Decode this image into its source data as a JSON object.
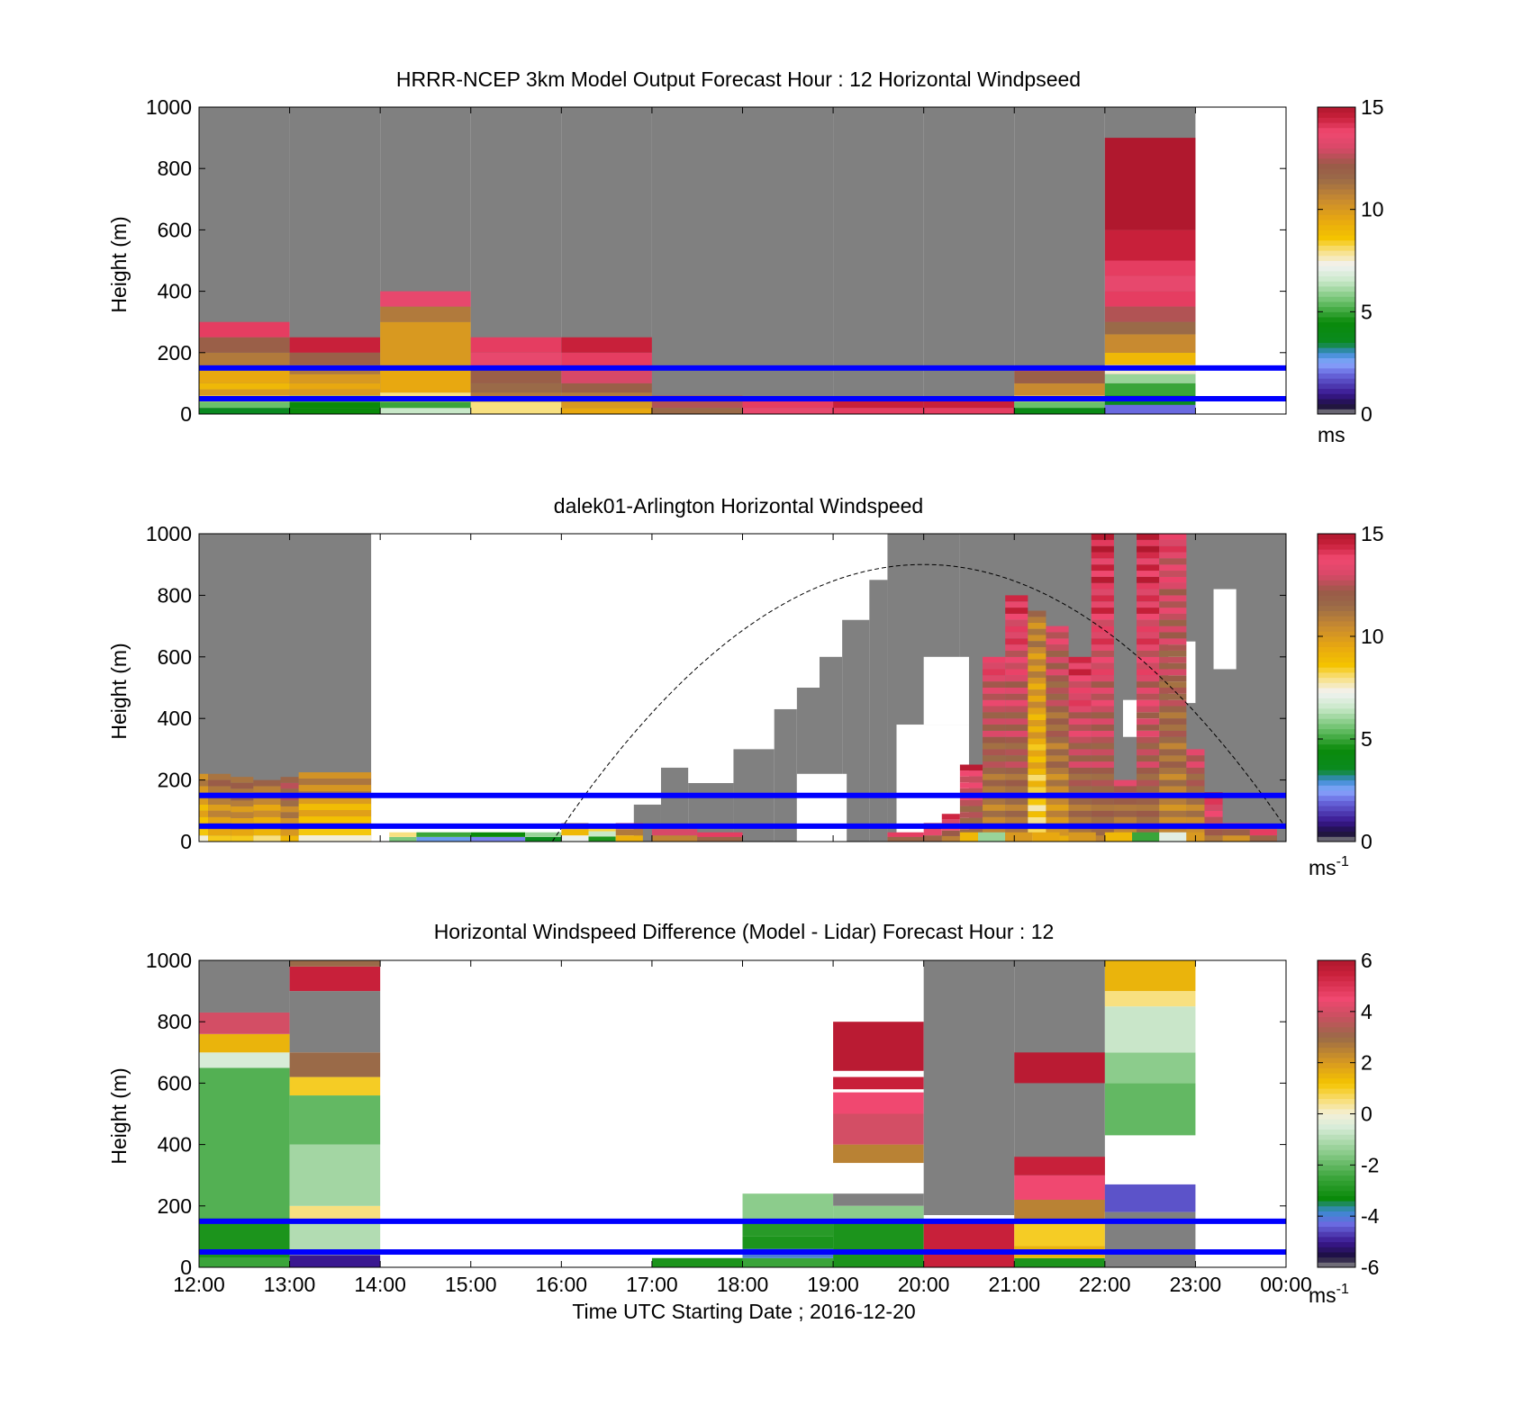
{
  "figure": {
    "xlabel": "Time UTC  Starting Date ; 2016-12-20",
    "x_ticks": [
      "12:00",
      "13:00",
      "14:00",
      "15:00",
      "16:00",
      "17:00",
      "18:00",
      "19:00",
      "20:00",
      "21:00",
      "22:00",
      "23:00",
      "00:00"
    ]
  },
  "chart_data": [
    {
      "type": "heatmap",
      "title": "HRRR-NCEP 3km Model Output   Forecast Hour : 12 Horizontal Windpseed",
      "ylabel": "Height (m)",
      "ylim": [
        0,
        1000
      ],
      "y_ticks": [
        "0",
        "200",
        "400",
        "600",
        "800",
        "1000"
      ],
      "x_range_hours": [
        12,
        24
      ],
      "colorbar": {
        "min": 0,
        "max": 15,
        "ticks": [
          "0",
          "5",
          "10",
          "15"
        ],
        "unit": "ms",
        "unit_sup": ""
      },
      "reference_lines_m": [
        150,
        50
      ],
      "missing_color": "#808080",
      "columns": [
        {
          "t0": 12,
          "t1": 13,
          "top": 1000,
          "bins": [
            [
              0,
              20,
              3.5
            ],
            [
              20,
              40,
              5.5
            ],
            [
              40,
              60,
              8
            ],
            [
              60,
              80,
              10
            ],
            [
              80,
              100,
              9
            ],
            [
              100,
              150,
              9.5
            ],
            [
              150,
              200,
              11
            ],
            [
              200,
              250,
              12
            ],
            [
              250,
              300,
              14
            ]
          ]
        },
        {
          "t0": 13,
          "t1": 14,
          "top": 1000,
          "bins": [
            [
              0,
              20,
              4.5
            ],
            [
              20,
              40,
              4.5
            ],
            [
              40,
              60,
              6
            ],
            [
              60,
              80,
              10
            ],
            [
              80,
              100,
              9.5
            ],
            [
              100,
              130,
              10
            ],
            [
              130,
              160,
              11
            ],
            [
              160,
              200,
              12
            ],
            [
              200,
              250,
              14.5
            ]
          ]
        },
        {
          "t0": 14,
          "t1": 15,
          "top": 1000,
          "bins": [
            [
              0,
              20,
              6.5
            ],
            [
              20,
              40,
              5
            ],
            [
              40,
              70,
              8
            ],
            [
              70,
              150,
              9.5
            ],
            [
              150,
              300,
              10
            ],
            [
              300,
              350,
              11
            ],
            [
              350,
              400,
              13.5
            ]
          ]
        },
        {
          "t0": 15,
          "t1": 16,
          "top": 1000,
          "bins": [
            [
              0,
              40,
              8
            ],
            [
              40,
              70,
              11
            ],
            [
              70,
              100,
              11.5
            ],
            [
              100,
              150,
              12
            ],
            [
              150,
              200,
              13.5
            ],
            [
              200,
              250,
              14
            ]
          ]
        },
        {
          "t0": 16,
          "t1": 17,
          "top": 1000,
          "bins": [
            [
              0,
              20,
              9.5
            ],
            [
              20,
              40,
              10
            ],
            [
              40,
              70,
              11
            ],
            [
              70,
              100,
              12
            ],
            [
              100,
              150,
              13
            ],
            [
              150,
              200,
              14
            ],
            [
              200,
              250,
              14.5
            ]
          ]
        },
        {
          "t0": 17,
          "t1": 18,
          "top": 1000,
          "bins": [
            [
              0,
              20,
              11.5
            ],
            [
              20,
              60,
              12.5
            ]
          ]
        },
        {
          "t0": 18,
          "t1": 19,
          "top": 1000,
          "bins": [
            [
              0,
              20,
              13.5
            ],
            [
              20,
              50,
              14
            ]
          ]
        },
        {
          "t0": 19,
          "t1": 20,
          "top": 1000,
          "bins": [
            [
              0,
              20,
              14
            ],
            [
              20,
              50,
              14.5
            ]
          ]
        },
        {
          "t0": 20,
          "t1": 21,
          "top": 1000,
          "bins": [
            [
              0,
              20,
              14
            ],
            [
              20,
              50,
              14.5
            ]
          ]
        },
        {
          "t0": 21,
          "t1": 22,
          "top": 1000,
          "bins": [
            [
              0,
              20,
              4
            ],
            [
              20,
              40,
              5.5
            ],
            [
              40,
              60,
              8
            ],
            [
              60,
              100,
              10.5
            ],
            [
              100,
              140,
              12
            ],
            [
              140,
              150,
              14
            ]
          ]
        },
        {
          "t0": 22,
          "t1": 23,
          "top": 1000,
          "bins": [
            [
              0,
              30,
              2
            ],
            [
              30,
              60,
              3.5
            ],
            [
              60,
              100,
              5
            ],
            [
              100,
              130,
              6
            ],
            [
              130,
              160,
              7.5
            ],
            [
              160,
              200,
              9
            ],
            [
              200,
              260,
              10.5
            ],
            [
              260,
              300,
              11.5
            ],
            [
              300,
              350,
              12.5
            ],
            [
              350,
              400,
              14
            ],
            [
              400,
              450,
              13.5
            ],
            [
              450,
              500,
              14
            ],
            [
              500,
              600,
              14.5
            ],
            [
              600,
              900,
              15
            ]
          ]
        },
        {
          "t0": 23,
          "t1": 24,
          "top": 0,
          "bins": []
        }
      ]
    },
    {
      "type": "heatmap",
      "title": "dalek01-Arlington  Horizontal Windspeed",
      "ylabel": "Height (m)",
      "ylim": [
        0,
        1000
      ],
      "y_ticks": [
        "0",
        "200",
        "400",
        "600",
        "800",
        "1000"
      ],
      "x_range_hours": [
        12,
        24
      ],
      "colorbar": {
        "min": 0,
        "max": 15,
        "ticks": [
          "0",
          "5",
          "10",
          "15"
        ],
        "unit": "ms",
        "unit_sup": "-1"
      },
      "reference_lines_m": [
        150,
        50
      ],
      "curve": {
        "name": "dashed arc",
        "peak_time": 20,
        "peak_height": 900,
        "zero_times": [
          15.9,
          24
        ]
      },
      "gray_regions": [
        [
          12.0,
          13.9,
          0,
          1000
        ],
        [
          17.1,
          17.4,
          0,
          240
        ],
        [
          17.4,
          17.9,
          0,
          190
        ],
        [
          17.9,
          18.35,
          0,
          300
        ],
        [
          18.35,
          18.6,
          0,
          430
        ],
        [
          18.6,
          18.85,
          0,
          500
        ],
        [
          18.85,
          19.1,
          0,
          600
        ],
        [
          19.1,
          19.4,
          0,
          720
        ],
        [
          19.4,
          19.6,
          0,
          850
        ],
        [
          19.6,
          20.4,
          0,
          1000
        ],
        [
          20.4,
          24.0,
          0,
          1000
        ],
        [
          16.8,
          17.1,
          0,
          120
        ]
      ],
      "white_holes": [
        [
          18.6,
          19.15,
          0,
          220
        ],
        [
          19.7,
          20.5,
          20,
          380
        ],
        [
          20.0,
          20.5,
          380,
          600
        ],
        [
          22.2,
          22.6,
          340,
          460
        ],
        [
          22.7,
          23.0,
          450,
          650
        ],
        [
          23.2,
          23.45,
          560,
          820
        ]
      ],
      "data_columns": [
        [
          12.0,
          12.1,
          220,
          11
        ],
        [
          12.1,
          12.35,
          220,
          12
        ],
        [
          12.35,
          12.6,
          210,
          12
        ],
        [
          12.6,
          12.9,
          200,
          11.5
        ],
        [
          12.9,
          13.1,
          210,
          12.5
        ],
        [
          13.1,
          13.9,
          225,
          11
        ],
        [
          14.1,
          14.4,
          30,
          8
        ],
        [
          14.4,
          15.0,
          30,
          5
        ],
        [
          15.0,
          15.6,
          30,
          4.5
        ],
        [
          15.6,
          16.0,
          30,
          6
        ],
        [
          16.0,
          16.3,
          60,
          10
        ],
        [
          16.3,
          16.6,
          50,
          7.5
        ],
        [
          16.6,
          16.9,
          60,
          12
        ],
        [
          17.0,
          17.5,
          40,
          13
        ],
        [
          17.5,
          18.0,
          30,
          14
        ],
        [
          19.6,
          20.0,
          30,
          14
        ],
        [
          20.0,
          20.2,
          60,
          14.5
        ],
        [
          20.2,
          20.4,
          90,
          14
        ],
        [
          20.4,
          20.65,
          250,
          14
        ],
        [
          20.65,
          20.9,
          600,
          13.5
        ],
        [
          20.9,
          21.15,
          800,
          14
        ],
        [
          21.15,
          21.35,
          750,
          11
        ],
        [
          21.35,
          21.6,
          700,
          13
        ],
        [
          21.6,
          21.85,
          600,
          14
        ],
        [
          21.85,
          22.1,
          1000,
          14.5
        ],
        [
          22.1,
          22.35,
          200,
          13
        ],
        [
          22.35,
          22.6,
          1000,
          14.5
        ],
        [
          22.6,
          22.9,
          1000,
          13.5
        ],
        [
          22.9,
          23.1,
          300,
          13
        ],
        [
          23.1,
          23.3,
          160,
          14.5
        ],
        [
          23.3,
          23.6,
          60,
          13
        ],
        [
          23.6,
          23.9,
          40,
          14
        ]
      ],
      "low_band": [
        [
          20.4,
          20.6,
          30,
          9
        ],
        [
          20.6,
          20.9,
          30,
          6
        ],
        [
          20.9,
          21.2,
          30,
          10
        ],
        [
          21.2,
          21.5,
          30,
          9.5
        ],
        [
          21.6,
          21.9,
          30,
          10
        ],
        [
          22.0,
          22.3,
          30,
          9
        ],
        [
          22.3,
          22.6,
          30,
          5
        ],
        [
          22.6,
          22.9,
          30,
          7
        ],
        [
          22.9,
          23.1,
          30,
          10
        ]
      ]
    },
    {
      "type": "heatmap",
      "title": "Horizontal Windspeed Difference (Model - Lidar) Forecast Hour : 12",
      "ylabel": "Height (m)",
      "ylim": [
        0,
        1000
      ],
      "y_ticks": [
        "0",
        "200",
        "400",
        "600",
        "800",
        "1000"
      ],
      "x_range_hours": [
        12,
        24
      ],
      "colorbar": {
        "min": -6,
        "max": 6,
        "ticks": [
          "-6",
          "-4",
          "-2",
          "0",
          "2",
          "4",
          "6"
        ],
        "unit": "ms",
        "unit_sup": "-1"
      },
      "reference_lines_m": [
        150,
        50
      ],
      "columns": [
        {
          "t0": 12,
          "t1": 13,
          "gray": [
            [
              830,
              1000
            ]
          ],
          "bins": [
            [
              0,
              30,
              -2.5
            ],
            [
              30,
              160,
              -3
            ],
            [
              160,
              650,
              -2.2
            ],
            [
              650,
              700,
              -0.5
            ],
            [
              700,
              760,
              1.5
            ],
            [
              760,
              830,
              4
            ]
          ]
        },
        {
          "t0": 13,
          "t1": 14,
          "gray": [
            [
              700,
              900
            ]
          ],
          "bins": [
            [
              0,
              40,
              -5
            ],
            [
              40,
              150,
              -1
            ],
            [
              150,
              200,
              0.5
            ],
            [
              200,
              400,
              -1.2
            ],
            [
              400,
              560,
              -2
            ],
            [
              560,
              620,
              1
            ],
            [
              620,
              700,
              3
            ],
            [
              900,
              980,
              5.5
            ],
            [
              980,
              1000,
              3
            ]
          ]
        },
        {
          "t0": 17,
          "t1": 18,
          "gray": [],
          "bins": [
            [
              0,
              30,
              -3
            ]
          ]
        },
        {
          "t0": 18,
          "t1": 19,
          "gray": [],
          "bins": [
            [
              0,
              30,
              -2.5
            ],
            [
              30,
              60,
              -4
            ],
            [
              60,
              100,
              -3
            ],
            [
              100,
              150,
              -2.8
            ],
            [
              150,
              240,
              -1.5
            ]
          ]
        },
        {
          "t0": 19,
          "t1": 20,
          "gray": [
            [
              200,
              240
            ]
          ],
          "bins": [
            [
              0,
              150,
              -3
            ],
            [
              150,
              200,
              -1.5
            ],
            [
              340,
              400,
              2.5
            ],
            [
              400,
              500,
              4
            ],
            [
              500,
              570,
              4.5
            ],
            [
              580,
              620,
              5.5
            ],
            [
              640,
              800,
              5.8
            ]
          ]
        },
        {
          "t0": 20,
          "t1": 21,
          "gray": [
            [
              170,
              1000
            ]
          ],
          "bins": [
            [
              0,
              150,
              5.5
            ]
          ]
        },
        {
          "t0": 21,
          "t1": 22,
          "gray": [
            [
              180,
              1000
            ]
          ],
          "bins": [
            [
              0,
              30,
              -3
            ],
            [
              30,
              70,
              1.5
            ],
            [
              70,
              150,
              1
            ],
            [
              150,
              220,
              2.5
            ],
            [
              220,
              300,
              4.5
            ],
            [
              300,
              360,
              5.5
            ],
            [
              600,
              700,
              5.8
            ]
          ]
        },
        {
          "t0": 22,
          "t1": 23,
          "gray": [
            [
              0,
              180
            ]
          ],
          "bins": [
            [
              180,
              270,
              -4.5
            ],
            [
              430,
              600,
              -2
            ],
            [
              600,
              700,
              -1.5
            ],
            [
              700,
              850,
              -0.7
            ],
            [
              850,
              900,
              0.5
            ],
            [
              900,
              1000,
              1.5
            ]
          ]
        }
      ]
    }
  ]
}
